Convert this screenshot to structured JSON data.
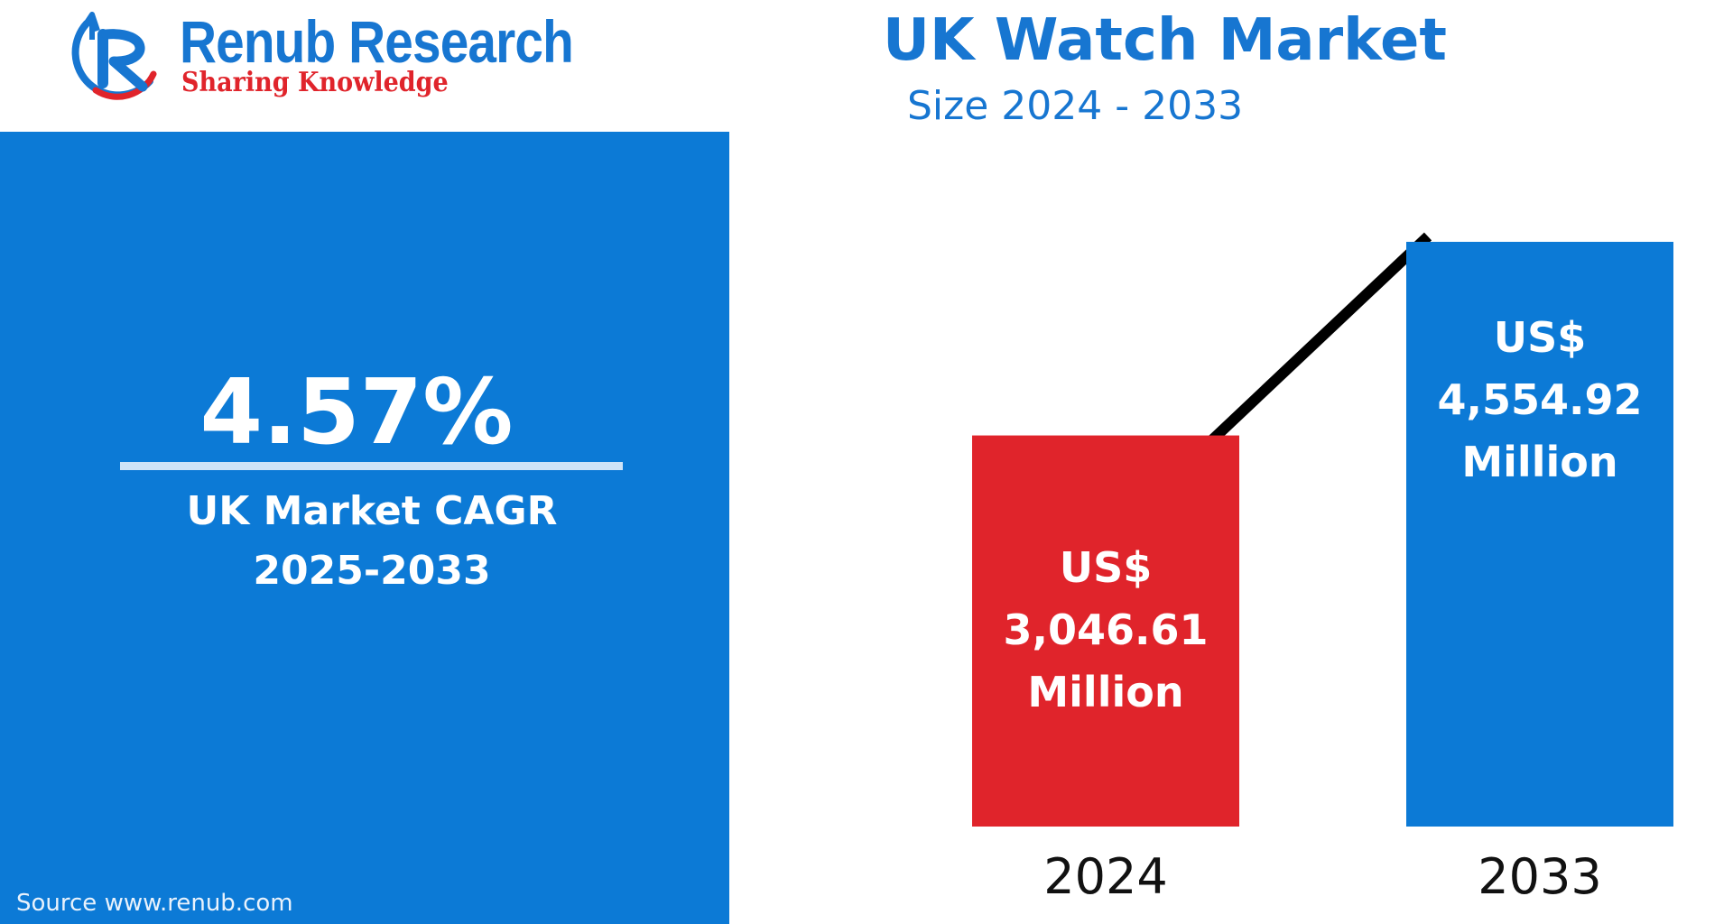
{
  "brand": {
    "name": "Renub Research",
    "tagline": "Sharing Knowledge",
    "logo_icon": "renub-rk-logo"
  },
  "cagr": {
    "value": "4.57%",
    "label_line1": "UK Market CAGR",
    "label_line2": "2025-2033"
  },
  "source": "Source  www.renub.com",
  "chart_data": {
    "type": "bar",
    "title": "UK Watch Market",
    "subtitle": "Size 2024 - 2033",
    "categories": [
      "2024",
      "2033"
    ],
    "values": [
      3046.61,
      4554.92
    ],
    "unit": "US$ Million",
    "data_labels": [
      {
        "line1": "US$",
        "line2": "3,046.61",
        "line3": "Million"
      },
      {
        "line1": "US$",
        "line2": "4,554.92",
        "line3": "Million"
      }
    ],
    "colors": [
      "#e0242b",
      "#0c7ad6"
    ],
    "trend_line": true,
    "grid": false,
    "ylim": [
      0,
      4554.92
    ]
  }
}
